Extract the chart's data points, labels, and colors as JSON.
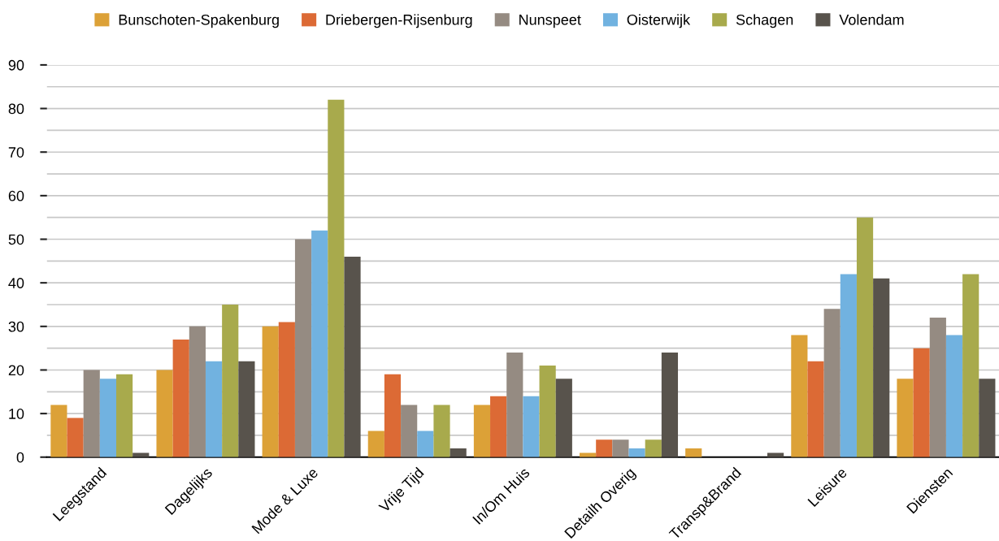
{
  "chart_data": {
    "type": "bar",
    "categories": [
      "Leegstand",
      "Dagelijks",
      "Mode & Luxe",
      "Vrije Tijd",
      "In/Om Huis",
      "Detailh Overig",
      "Transp&Brand",
      "Leisure",
      "Diensten"
    ],
    "series": [
      {
        "name": "Bunschoten-Spakenburg",
        "color": "#dca137",
        "values": [
          12,
          20,
          30,
          6,
          12,
          1,
          2,
          28,
          18
        ]
      },
      {
        "name": "Driebergen-Rijsenburg",
        "color": "#dc6a35",
        "values": [
          9,
          27,
          31,
          19,
          14,
          4,
          0,
          22,
          25
        ]
      },
      {
        "name": "Nunspeet",
        "color": "#958b82",
        "values": [
          20,
          30,
          50,
          12,
          24,
          4,
          0,
          34,
          32
        ]
      },
      {
        "name": "Oisterwijk",
        "color": "#71b2e0",
        "values": [
          18,
          22,
          52,
          6,
          14,
          2,
          0,
          42,
          28
        ]
      },
      {
        "name": "Schagen",
        "color": "#a8aa4c",
        "values": [
          19,
          35,
          82,
          12,
          21,
          4,
          0,
          55,
          42
        ]
      },
      {
        "name": "Volendam",
        "color": "#58534c",
        "values": [
          1,
          22,
          46,
          2,
          18,
          24,
          1,
          41,
          18
        ]
      }
    ],
    "ylim": [
      0,
      90
    ],
    "yticks": [
      0,
      {
        "value": 5,
        "label": null
      },
      10,
      {
        "value": 15,
        "label": null
      },
      20,
      {
        "value": 25,
        "label": null
      },
      30,
      {
        "value": 35,
        "label": null
      },
      40,
      {
        "value": 45,
        "label": null
      },
      50,
      {
        "value": 55,
        "label": null
      },
      60,
      {
        "value": 65,
        "label": null
      },
      70,
      {
        "value": 75,
        "label": null
      },
      80,
      {
        "value": 85,
        "label": null
      },
      90
    ],
    "grid": "y",
    "legend": "top"
  }
}
